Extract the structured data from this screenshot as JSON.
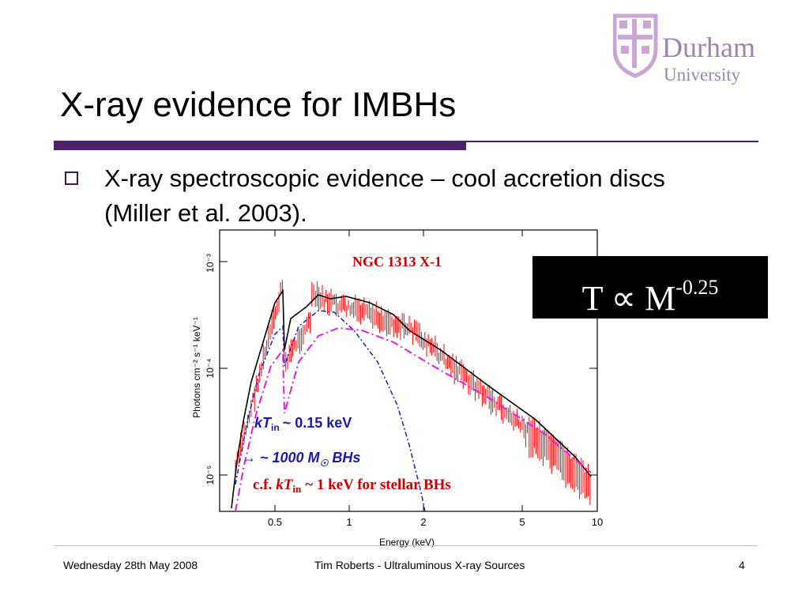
{
  "slide": {
    "title": "X-ray evidence for IMBHs",
    "bullet": "X-ray spectroscopic evidence – cool accretion discs (Miller et al. 2003).",
    "relation": {
      "base": "T ∝ M",
      "exponent": "-0.25"
    }
  },
  "logo": {
    "line1": "Durham",
    "line2": "University"
  },
  "plot": {
    "object_label": "NGC 1313 X-1",
    "ylabel": "Photons cm⁻² s⁻¹ keV⁻¹",
    "xlabel": "Energy (keV)",
    "yticks": [
      "10⁻³",
      "10⁻⁴",
      "10⁻⁵"
    ],
    "xticks": [
      "0.5",
      "1",
      "2",
      "5",
      "10"
    ],
    "annot_kt": "kT",
    "annot_kt_sub": "in",
    "annot_kt_val": "~ 0.15 keV",
    "annot_mass": "→ ~ 1000 M",
    "annot_mass_sym": "☉",
    "annot_mass_tail": "BHs",
    "annot_cf_pre": "c.f.",
    "annot_cf_kt": "kT",
    "annot_cf_sub": "in",
    "annot_cf_tail": "~ 1 keV for stellar BHs",
    "colors": {
      "data": "#ff0000",
      "model": "#000000",
      "disc": "#2a2ab8",
      "powerlaw": "#e020e0",
      "annot_blue": "#1a1aa8",
      "annot_red": "#cc0000"
    }
  },
  "footer": {
    "date": "Wednesday 28th May 2008",
    "center": "Tim Roberts - Ultraluminous X-ray Sources",
    "page": "4"
  }
}
